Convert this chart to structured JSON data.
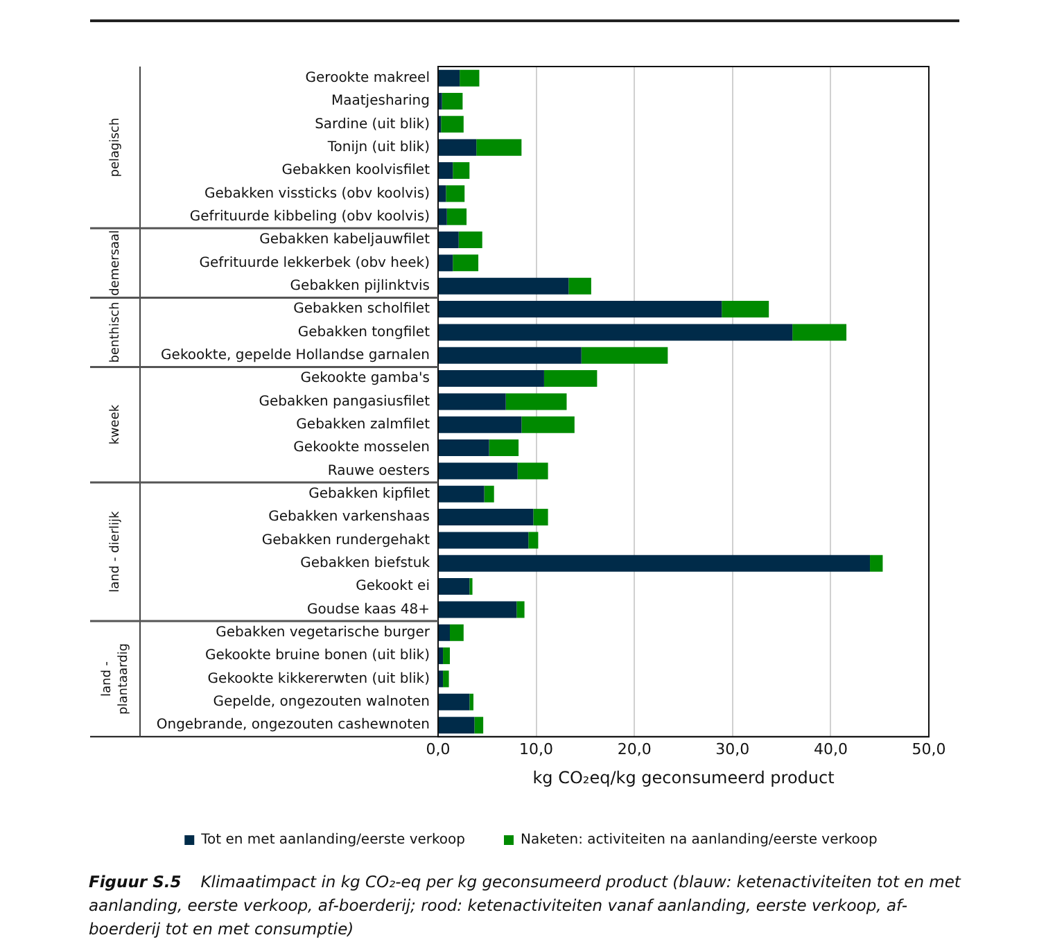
{
  "chart_data": {
    "type": "bar",
    "orientation": "horizontal",
    "stacked": true,
    "categories": [
      "Gerookte makreel",
      "Maatjesharing",
      "Sardine (uit blik)",
      "Tonijn (uit blik)",
      "Gebakken koolvisfilet",
      "Gebakken vissticks (obv koolvis)",
      "Gefrituurde kibbeling (obv koolvis)",
      "Gebakken kabeljauwfilet",
      "Gefrituurde lekkerbek (obv heek)",
      "Gebakken pijlinktvis",
      "Gebakken scholfilet",
      "Gebakken tongfilet",
      "Gekookte, gepelde Hollandse garnalen",
      "Gekookte gamba's",
      "Gebakken pangasiusfilet",
      "Gebakken zalmfilet",
      "Gekookte mosselen",
      "Rauwe oesters",
      "Gebakken kipfilet",
      "Gebakken varkenshaas",
      "Gebakken rundergehakt",
      "Gebakken biefstuk",
      "Gekookt ei",
      "Goudse kaas 48+",
      "Gebakken vegetarische burger",
      "Gekookte bruine bonen (uit blik)",
      "Gekookte kikkererwten (uit blik)",
      "Gepelde, ongezouten walnoten",
      "Ongebrande, ongezouten cashewnoten"
    ],
    "series": [
      {
        "name": "Tot en met aanlanding/eerste verkoop",
        "color": "#002b49",
        "values": [
          2.2,
          0.4,
          0.3,
          3.9,
          1.5,
          0.8,
          0.9,
          2.1,
          1.5,
          13.3,
          28.9,
          36.1,
          14.6,
          10.8,
          6.9,
          8.5,
          5.2,
          8.1,
          4.7,
          9.7,
          9.2,
          44.0,
          3.2,
          8.0,
          1.2,
          0.5,
          0.5,
          3.2,
          3.7
        ]
      },
      {
        "name": "Naketen: activiteiten na aanlanding/eerste verkoop",
        "color": "#008a00",
        "values": [
          2.0,
          2.1,
          2.3,
          4.6,
          1.7,
          1.9,
          2.0,
          2.4,
          2.6,
          2.3,
          4.8,
          5.5,
          8.8,
          5.4,
          6.2,
          5.4,
          3.0,
          3.1,
          1.0,
          1.5,
          1.0,
          1.3,
          0.3,
          0.8,
          1.4,
          0.7,
          0.6,
          0.4,
          0.9
        ]
      }
    ],
    "xlabel": "kg CO₂eq/kg geconsumeerd product",
    "xlim": [
      0,
      50
    ],
    "xticks": [
      {
        "value": 0,
        "label": "0,0"
      },
      {
        "value": 10,
        "label": "10,0"
      },
      {
        "value": 20,
        "label": "20,0"
      },
      {
        "value": 30,
        "label": "30,0"
      },
      {
        "value": 40,
        "label": "40,0"
      },
      {
        "value": 50,
        "label": "50,0"
      }
    ],
    "grid": "x",
    "legend": "bottom",
    "annotations": [
      "pelagisch",
      "demersaal",
      "benthisch",
      "kweek",
      "land - dierlijk",
      "land - plantaardig",
      "Figuur S.5",
      "Klimaatimpact in kg CO₂-eq per kg geconsumeerd product (blauw: ketenactiviteiten tot en met aanlanding, eerste verkoop, af-boerderij; rood: ketenactiviteiten vanaf aanlanding, eerste verkoop, af-boerderij tot en met consumptie)"
    ]
  }
}
